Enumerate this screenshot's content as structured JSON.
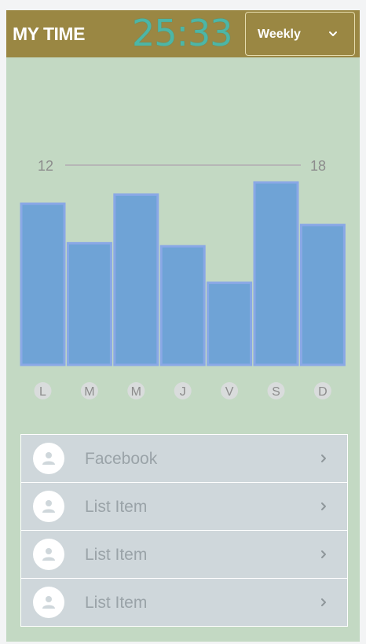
{
  "header": {
    "title": "MY TIME",
    "clock": "25:33",
    "period": {
      "selected": "Weekly",
      "icon": "chevron-down-icon"
    }
  },
  "colors": {
    "header_bg": "#9a8743",
    "content_bg": "#c3d9c3",
    "bar_fill": "#6fa3d6",
    "bar_stroke": "#8aa8e6",
    "clock": "#4db6a6"
  },
  "chart_data": {
    "type": "bar",
    "categories": [
      "L",
      "M",
      "M",
      "J",
      "V",
      "S",
      "D"
    ],
    "values": [
      53,
      40,
      56,
      39,
      27,
      60,
      46
    ],
    "ylim": [
      0,
      60
    ],
    "title": "",
    "xlabel": "",
    "ylabel": "",
    "legend": false,
    "grid": false,
    "reference_line": {
      "left_label": "12",
      "right_label": "18"
    }
  },
  "list": {
    "items": [
      {
        "label": "Facebook",
        "icon": "person-icon"
      },
      {
        "label": "List Item",
        "icon": "person-icon"
      },
      {
        "label": "List Item",
        "icon": "person-icon"
      },
      {
        "label": "List Item",
        "icon": "person-icon"
      }
    ]
  }
}
